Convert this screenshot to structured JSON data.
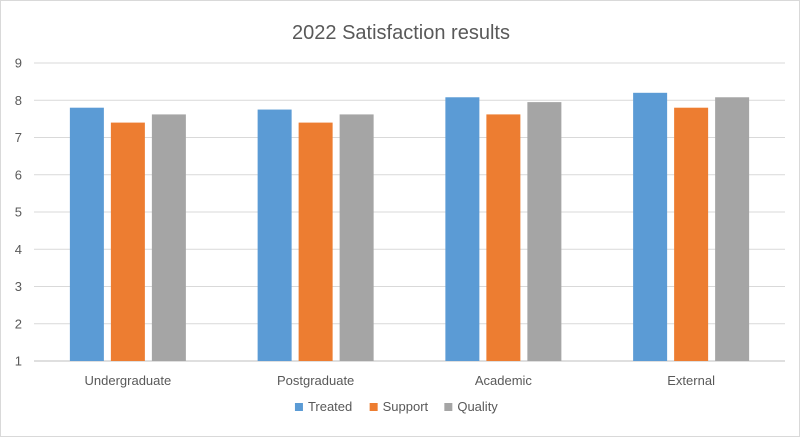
{
  "chart_data": {
    "type": "bar",
    "title": "2022 Satisfaction results",
    "xlabel": "",
    "ylabel": "",
    "ylim": [
      1,
      9
    ],
    "yticks": [
      1,
      2,
      3,
      4,
      5,
      6,
      7,
      8,
      9
    ],
    "grid": true,
    "legend_position": "bottom",
    "categories": [
      "Undergraduate",
      "Postgraduate",
      "Academic",
      "External"
    ],
    "series": [
      {
        "name": "Treated",
        "color": "#5b9bd5",
        "values": [
          7.8,
          7.75,
          8.08,
          8.2
        ]
      },
      {
        "name": "Support",
        "color": "#ed7d31",
        "values": [
          7.4,
          7.4,
          7.62,
          7.8
        ]
      },
      {
        "name": "Quality",
        "color": "#a5a5a5",
        "values": [
          7.62,
          7.62,
          7.95,
          8.08
        ]
      }
    ]
  }
}
